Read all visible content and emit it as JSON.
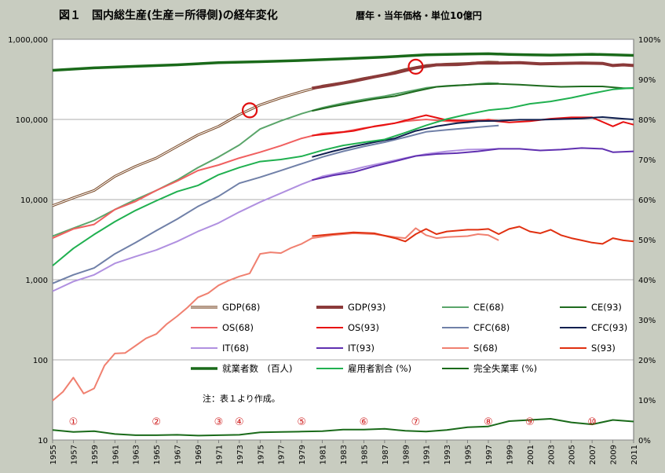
{
  "chart_data": {
    "type": "line",
    "title": "図１　国内総生産(生産＝所得側)の経年変化",
    "subtitle": "暦年・当年価格・単位10億円",
    "y_left": {
      "scale": "log",
      "lim": [
        10,
        1000000
      ],
      "ticks": [
        "10",
        "100",
        "1,000",
        "10,000",
        "100,000",
        "1,000,000"
      ]
    },
    "y_right": {
      "lim": [
        0,
        100
      ],
      "ticks": [
        "0%",
        "10%",
        "20%",
        "30%",
        "40%",
        "50%",
        "60%",
        "70%",
        "80%",
        "90%",
        "100%"
      ]
    },
    "x_ticks": [
      "1955",
      "1957",
      "1959",
      "1961",
      "1963",
      "1965",
      "1967",
      "1969",
      "1971",
      "1973",
      "1975",
      "1977",
      "1979",
      "1981",
      "1983",
      "1985",
      "1987",
      "1989",
      "1991",
      "1993",
      "1995",
      "1997",
      "1999",
      "2001",
      "2003",
      "2005",
      "2007",
      "2009",
      "2011"
    ],
    "series": [
      {
        "name": "GDP(68)",
        "axis": "left",
        "color": "#7a4a28",
        "style": "double",
        "x": [
          1955,
          1957,
          1959,
          1961,
          1963,
          1965,
          1967,
          1969,
          1971,
          1973,
          1975,
          1977,
          1979,
          1981,
          1983,
          1985,
          1987,
          1989,
          1991,
          1993,
          1995,
          1997,
          1998
        ],
        "values": [
          8400,
          10500,
          13000,
          19500,
          26000,
          33000,
          46000,
          64000,
          82000,
          115000,
          152000,
          186000,
          222000,
          261000,
          287000,
          325000,
          360000,
          420000,
          470000,
          490000,
          500000,
          520000,
          515000
        ]
      },
      {
        "name": "GDP(93)",
        "axis": "left",
        "color": "#8b3a3a",
        "style": "thick",
        "x": [
          1980,
          1982,
          1984,
          1986,
          1988,
          1990,
          1992,
          1994,
          1996,
          1998,
          2000,
          2002,
          2004,
          2006,
          2008,
          2009,
          2010,
          2011
        ],
        "values": [
          245000,
          270000,
          300000,
          340000,
          380000,
          440000,
          480000,
          485000,
          505000,
          505000,
          510000,
          495000,
          500000,
          505000,
          500000,
          470000,
          480000,
          470000
        ]
      },
      {
        "name": "CE(68)",
        "axis": "left",
        "color": "#5aa56a",
        "style": "normal",
        "x": [
          1955,
          1957,
          1959,
          1961,
          1963,
          1965,
          1967,
          1969,
          1971,
          1973,
          1975,
          1977,
          1979,
          1981,
          1983,
          1985,
          1987,
          1989,
          1991,
          1993,
          1995,
          1997,
          1998
        ],
        "values": [
          3500,
          4400,
          5500,
          7500,
          10000,
          13000,
          17500,
          25000,
          34000,
          48000,
          76000,
          96000,
          118000,
          140000,
          160000,
          178000,
          195000,
          220000,
          248000,
          262000,
          270000,
          285000,
          282000
        ]
      },
      {
        "name": "CE(93)",
        "axis": "left",
        "color": "#1f6b1f",
        "style": "normal",
        "x": [
          1980,
          1982,
          1984,
          1986,
          1988,
          1990,
          1992,
          1994,
          1996,
          1998,
          2000,
          2002,
          2004,
          2006,
          2008,
          2010,
          2011
        ],
        "values": [
          128000,
          145000,
          162000,
          180000,
          195000,
          225000,
          255000,
          265000,
          275000,
          278000,
          272000,
          262000,
          255000,
          258000,
          258000,
          245000,
          245000
        ]
      },
      {
        "name": "OS(68)",
        "axis": "left",
        "color": "#f06060",
        "style": "normal",
        "x": [
          1955,
          1957,
          1959,
          1961,
          1963,
          1965,
          1967,
          1969,
          1971,
          1973,
          1975,
          1977,
          1979,
          1981,
          1983,
          1985,
          1987,
          1989,
          1991,
          1993,
          1995,
          1997,
          1998
        ],
        "values": [
          3300,
          4300,
          4900,
          7500,
          9500,
          13000,
          17000,
          23000,
          27000,
          33000,
          39000,
          47000,
          58000,
          67000,
          70000,
          78000,
          85000,
          95000,
          100000,
          95000,
          92000,
          100000,
          96000
        ]
      },
      {
        "name": "OS(93)",
        "axis": "left",
        "color": "#e81010",
        "style": "normal",
        "x": [
          1980,
          1982,
          1984,
          1986,
          1988,
          1990,
          1991,
          1993,
          1995,
          1997,
          1999,
          2001,
          2003,
          2005,
          2007,
          2009,
          2010,
          2011
        ],
        "values": [
          63000,
          67000,
          72000,
          82000,
          90000,
          105000,
          113000,
          98000,
          96000,
          97000,
          92000,
          95000,
          102000,
          106000,
          106000,
          82000,
          93000,
          86000
        ]
      },
      {
        "name": "CFC(68)",
        "axis": "left",
        "color": "#7080a8",
        "style": "normal",
        "x": [
          1955,
          1957,
          1959,
          1961,
          1963,
          1965,
          1967,
          1969,
          1971,
          1973,
          1975,
          1977,
          1979,
          1981,
          1983,
          1985,
          1987,
          1989,
          1991,
          1993,
          1995,
          1997,
          1998
        ],
        "values": [
          900,
          1150,
          1400,
          2100,
          2900,
          4100,
          5700,
          8200,
          11000,
          16000,
          19000,
          23000,
          28000,
          34000,
          40000,
          46000,
          52000,
          60000,
          70000,
          74000,
          78000,
          82000,
          84000
        ]
      },
      {
        "name": "CFC(93)",
        "axis": "left",
        "color": "#102050",
        "style": "normal",
        "x": [
          1980,
          1982,
          1984,
          1986,
          1988,
          1990,
          1992,
          1994,
          1996,
          1998,
          2000,
          2002,
          2004,
          2006,
          2008,
          2010,
          2011
        ],
        "values": [
          34000,
          40000,
          46000,
          52000,
          58000,
          72000,
          82000,
          90000,
          95000,
          96000,
          99000,
          99000,
          101000,
          103000,
          107000,
          102000,
          100000
        ]
      },
      {
        "name": "IT(68)",
        "axis": "left",
        "color": "#b090e0",
        "style": "normal",
        "x": [
          1955,
          1957,
          1959,
          1961,
          1963,
          1965,
          1967,
          1969,
          1971,
          1973,
          1975,
          1977,
          1979,
          1981,
          1983,
          1985,
          1987,
          1989,
          1991,
          1993,
          1995,
          1997,
          1998
        ],
        "values": [
          720,
          950,
          1150,
          1600,
          1950,
          2350,
          3000,
          4000,
          5100,
          7000,
          9300,
          12000,
          15500,
          19500,
          22000,
          25500,
          29000,
          33000,
          37000,
          40000,
          42000,
          42500,
          43000
        ]
      },
      {
        "name": "IT(93)",
        "axis": "left",
        "color": "#6030b0",
        "style": "normal",
        "x": [
          1980,
          1982,
          1984,
          1986,
          1988,
          1990,
          1992,
          1994,
          1996,
          1998,
          2000,
          2002,
          2004,
          2006,
          2008,
          2009,
          2011
        ],
        "values": [
          17500,
          20000,
          22000,
          26000,
          30000,
          35000,
          37000,
          38000,
          40000,
          43000,
          43000,
          41000,
          42000,
          44000,
          43000,
          39000,
          40000
        ]
      },
      {
        "name": "S(68)",
        "axis": "left",
        "color": "#f08070",
        "style": "normal",
        "x": [
          1955,
          1956,
          1957,
          1958,
          1959,
          1960,
          1961,
          1962,
          1963,
          1964,
          1965,
          1966,
          1967,
          1968,
          1969,
          1970,
          1971,
          1972,
          1973,
          1974,
          1975,
          1976,
          1977,
          1978,
          1979,
          1980,
          1982,
          1984,
          1986,
          1988,
          1989,
          1990,
          1991,
          1992,
          1993,
          1995,
          1996,
          1997,
          1998
        ],
        "values": [
          31,
          40,
          60,
          38,
          44,
          85,
          120,
          122,
          150,
          185,
          210,
          280,
          350,
          450,
          600,
          680,
          850,
          980,
          1100,
          1200,
          2100,
          2200,
          2150,
          2500,
          2800,
          3300,
          3600,
          3800,
          3700,
          3400,
          3300,
          4400,
          3600,
          3300,
          3400,
          3500,
          3700,
          3600,
          3100
        ]
      },
      {
        "name": "S(93)",
        "axis": "left",
        "color": "#e03010",
        "style": "normal",
        "x": [
          1980,
          1982,
          1984,
          1986,
          1988,
          1989,
          1990,
          1991,
          1992,
          1993,
          1994,
          1995,
          1996,
          1997,
          1998,
          1999,
          2000,
          2001,
          2002,
          2003,
          2004,
          2005,
          2006,
          2007,
          2008,
          2009,
          2010,
          2011
        ],
        "values": [
          3500,
          3700,
          3900,
          3800,
          3300,
          3000,
          3700,
          4300,
          3700,
          4000,
          4100,
          4200,
          4200,
          4300,
          3700,
          4300,
          4600,
          4000,
          3800,
          4200,
          3600,
          3300,
          3100,
          2900,
          2800,
          3300,
          3100,
          3000
        ]
      },
      {
        "name": "就業者数 (百人)",
        "axis": "left",
        "color": "#1a6a1a",
        "style": "bold",
        "x": [
          1955,
          1959,
          1963,
          1967,
          1971,
          1975,
          1979,
          1983,
          1987,
          1991,
          1995,
          1997,
          1999,
          2001,
          2003,
          2005,
          2007,
          2009,
          2011
        ],
        "values": [
          410000,
          440000,
          460000,
          480000,
          510000,
          525000,
          545000,
          570000,
          600000,
          640000,
          655000,
          660000,
          648000,
          640000,
          635000,
          642000,
          650000,
          640000,
          630000
        ]
      },
      {
        "name": "雇用者割合 (%)",
        "axis": "right",
        "color": "#20b050",
        "style": "normal",
        "x": [
          1955,
          1957,
          1959,
          1961,
          1963,
          1965,
          1967,
          1969,
          1971,
          1973,
          1975,
          1977,
          1979,
          1981,
          1983,
          1985,
          1987,
          1989,
          1991,
          1993,
          1995,
          1997,
          1999,
          2001,
          2003,
          2005,
          2007,
          2009,
          2011
        ],
        "values": [
          43.5,
          47.8,
          51.3,
          54.5,
          57.3,
          59.7,
          62.0,
          63.5,
          66.2,
          68.0,
          69.5,
          70.0,
          70.8,
          72.3,
          73.5,
          74.3,
          75.0,
          76.7,
          78.5,
          80.1,
          81.3,
          82.3,
          82.8,
          83.9,
          84.5,
          85.4,
          86.5,
          87.5,
          87.9
        ]
      },
      {
        "name": "完全失業率 (%)",
        "axis": "right",
        "color": "#1a6a1a",
        "style": "normal",
        "x": [
          1955,
          1957,
          1959,
          1961,
          1963,
          1965,
          1967,
          1969,
          1971,
          1973,
          1975,
          1977,
          1979,
          1981,
          1983,
          1985,
          1987,
          1989,
          1991,
          1993,
          1995,
          1997,
          1999,
          2001,
          2003,
          2005,
          2007,
          2009,
          2011
        ],
        "values": [
          2.5,
          2.0,
          2.2,
          1.5,
          1.2,
          1.2,
          1.3,
          1.1,
          1.2,
          1.3,
          1.9,
          2.0,
          2.1,
          2.2,
          2.6,
          2.6,
          2.8,
          2.3,
          2.1,
          2.5,
          3.2,
          3.4,
          4.7,
          5.0,
          5.3,
          4.4,
          3.9,
          5.0,
          4.6
        ]
      }
    ],
    "legend": [
      [
        "GDP(68)",
        "GDP(93)",
        "CE(68)",
        "CE(93)"
      ],
      [
        "OS(68)",
        "OS(93)",
        "CFC(68)",
        "CFC(93)"
      ],
      [
        "IT(68)",
        "IT(93)",
        "S(68)",
        "S(93)"
      ],
      [
        "就業者数　(百人)",
        "雇用者割合 (%)",
        "完全失業率 (%)"
      ]
    ],
    "note": "注：表１より作成。",
    "period_markers": [
      {
        "label": "①",
        "year": 1957
      },
      {
        "label": "②",
        "year": 1965
      },
      {
        "label": "③",
        "year": 1971
      },
      {
        "label": "④",
        "year": 1973
      },
      {
        "label": "⑤",
        "year": 1979
      },
      {
        "label": "⑥",
        "year": 1985
      },
      {
        "label": "⑦",
        "year": 1990
      },
      {
        "label": "⑧",
        "year": 1997
      },
      {
        "label": "⑨",
        "year": 2001
      },
      {
        "label": "⑩",
        "year": 2007
      }
    ],
    "highlight_circles": [
      {
        "year": 1974,
        "value": 130000
      },
      {
        "year": 1990,
        "value": 455000
      }
    ]
  }
}
